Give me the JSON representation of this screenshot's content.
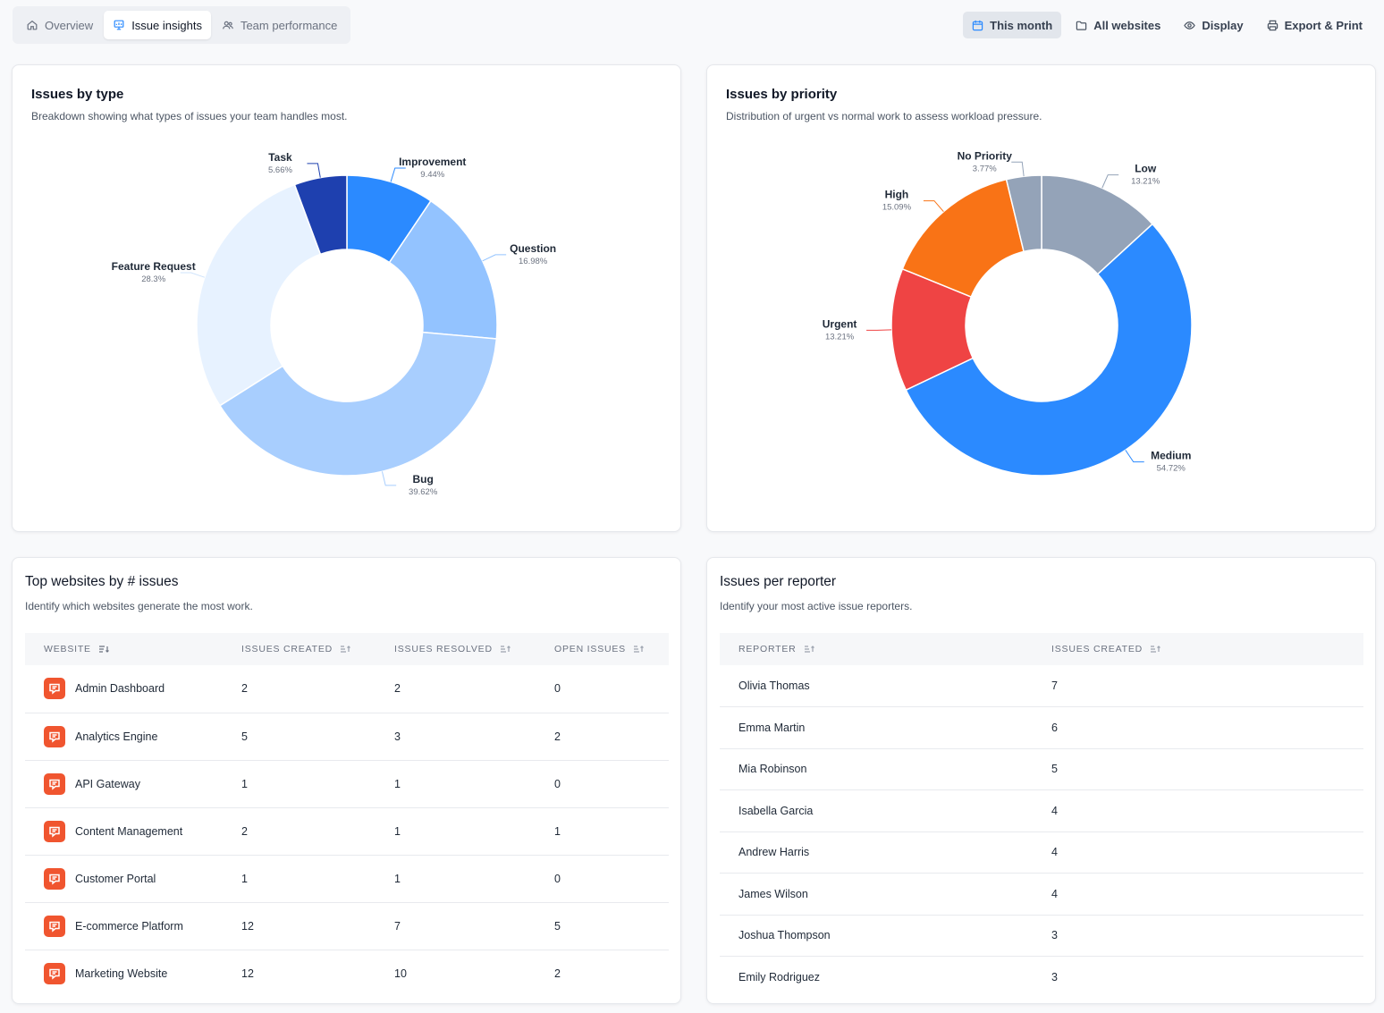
{
  "tabs": [
    {
      "label": "Overview",
      "icon": "home-icon"
    },
    {
      "label": "Issue insights",
      "icon": "chart-icon"
    },
    {
      "label": "Team performance",
      "icon": "users-icon"
    }
  ],
  "actions": {
    "this_month": "This month",
    "all_websites": "All websites",
    "display": "Display",
    "export": "Export & Print"
  },
  "type_card": {
    "title": "Issues by type",
    "subtitle": "Breakdown showing what types of issues your team handles most."
  },
  "priority_card": {
    "title": "Issues by priority",
    "subtitle": "Distribution of urgent vs normal work to assess workload pressure."
  },
  "chart_data": [
    {
      "type": "pie",
      "title": "Issues by type",
      "categories": [
        "Improvement",
        "Question",
        "Bug",
        "Feature Request",
        "Task"
      ],
      "values": [
        9.44,
        16.98,
        39.62,
        28.3,
        5.66
      ],
      "labels": [
        "9.44%",
        "16.98%",
        "39.62%",
        "28.3%",
        "5.66%"
      ],
      "colors": [
        "#2b8aff",
        "#93c3ff",
        "#a8cefe",
        "#e7f2ff",
        "#1e40af"
      ]
    },
    {
      "type": "pie",
      "title": "Issues by priority",
      "categories": [
        "Low",
        "Medium",
        "Urgent",
        "High",
        "No Priority"
      ],
      "values": [
        13.21,
        54.72,
        13.21,
        15.09,
        3.77
      ],
      "labels": [
        "13.21%",
        "54.72%",
        "13.21%",
        "15.09%",
        "3.77%"
      ],
      "colors": [
        "#94a3b8",
        "#2b8aff",
        "#ef4444",
        "#f97316",
        "#94a3b8"
      ]
    }
  ],
  "websites": {
    "title": "Top websites by # issues",
    "subtitle": "Identify which websites generate the most work.",
    "columns": [
      "WEBSITE",
      "ISSUES CREATED",
      "ISSUES RESOLVED",
      "OPEN ISSUES"
    ],
    "rows": [
      {
        "name": "Admin Dashboard",
        "created": "2",
        "resolved": "2",
        "open": "0"
      },
      {
        "name": "Analytics Engine",
        "created": "5",
        "resolved": "3",
        "open": "2"
      },
      {
        "name": "API Gateway",
        "created": "1",
        "resolved": "1",
        "open": "0"
      },
      {
        "name": "Content Management",
        "created": "2",
        "resolved": "1",
        "open": "1"
      },
      {
        "name": "Customer Portal",
        "created": "1",
        "resolved": "1",
        "open": "0"
      },
      {
        "name": "E-commerce Platform",
        "created": "12",
        "resolved": "7",
        "open": "5"
      },
      {
        "name": "Marketing Website",
        "created": "12",
        "resolved": "10",
        "open": "2"
      }
    ]
  },
  "reporters": {
    "title": "Issues per reporter",
    "subtitle": "Identify your most active issue reporters.",
    "columns": [
      "REPORTER",
      "ISSUES CREATED"
    ],
    "rows": [
      {
        "name": "Olivia Thomas",
        "created": "7"
      },
      {
        "name": "Emma Martin",
        "created": "6"
      },
      {
        "name": "Mia Robinson",
        "created": "5"
      },
      {
        "name": "Isabella Garcia",
        "created": "4"
      },
      {
        "name": "Andrew Harris",
        "created": "4"
      },
      {
        "name": "James Wilson",
        "created": "4"
      },
      {
        "name": "Joshua Thompson",
        "created": "3"
      },
      {
        "name": "Emily Rodriguez",
        "created": "3"
      }
    ]
  }
}
